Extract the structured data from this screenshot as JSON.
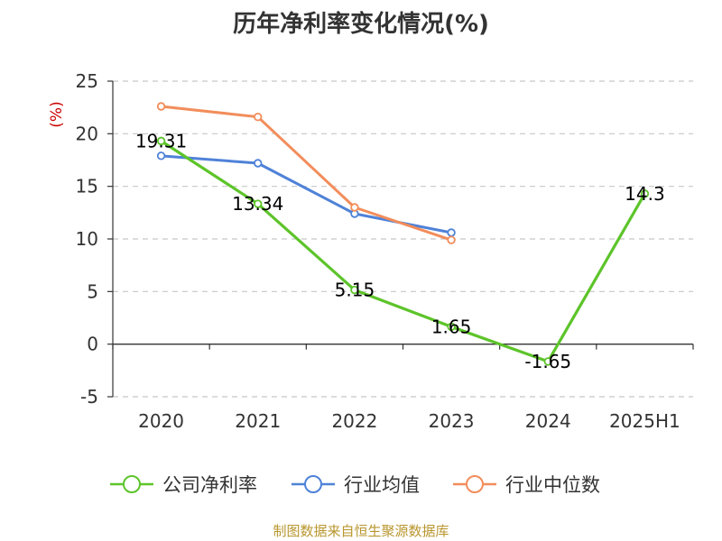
{
  "title": "历年净利率变化情况(%)",
  "source": "制图数据来自恒生聚源数据库",
  "chart_data": {
    "type": "line",
    "title": "历年净利率变化情况(%)",
    "ylabel": "(%)",
    "xlabel": "",
    "categories": [
      "2020",
      "2021",
      "2022",
      "2023",
      "2024",
      "2025H1"
    ],
    "yticks": [
      -5,
      0,
      5,
      10,
      15,
      20,
      25
    ],
    "ylim": [
      -5,
      25
    ],
    "grid": true,
    "legend_position": "bottom",
    "series": [
      {
        "name": "公司净利率",
        "color": "#5dc42a",
        "values": [
          19.31,
          13.34,
          5.15,
          1.65,
          -1.65,
          14.3
        ],
        "labels": [
          "19.31",
          "13.34",
          "5.15",
          "1.65",
          "-1.65",
          "14.3"
        ]
      },
      {
        "name": "行业均值",
        "color": "#4f82d8",
        "values": [
          17.9,
          17.2,
          12.4,
          10.6,
          null,
          null
        ]
      },
      {
        "name": "行业中位数",
        "color": "#f28d5b",
        "values": [
          22.6,
          21.6,
          13.0,
          9.9,
          null,
          null
        ]
      }
    ]
  }
}
